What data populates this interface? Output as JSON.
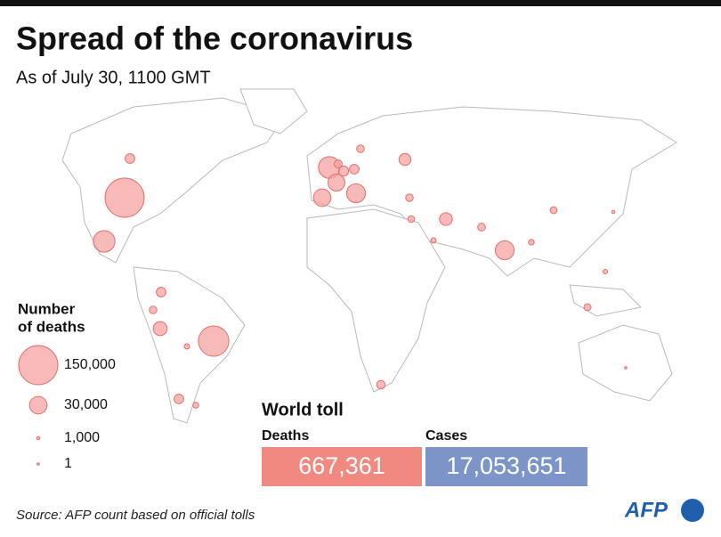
{
  "header": {
    "title": "Spread of the coronavirus",
    "subtitle": "As of July 30, 1100 GMT"
  },
  "legend": {
    "title_lines": [
      "Number",
      "of deaths"
    ],
    "sizes": [
      {
        "value": 150000,
        "label": "150,000"
      },
      {
        "value": 30000,
        "label": "30,000"
      },
      {
        "value": 1000,
        "label": "1,000"
      },
      1
    ]
  },
  "map": {
    "type": "bubble-map",
    "color": "#f4a3a0",
    "bubbles": [
      150000,
      90000,
      46000,
      46000,
      35000,
      30000,
      28000,
      35000,
      19000,
      16000,
      14000,
      9000,
      9000,
      7000,
      9000,
      9000,
      9800,
      5700,
      4500,
      5600,
      5600,
      3300,
      2800,
      5800,
      4900,
      4600,
      6100,
      3100,
      2800,
      2000,
      1000,
      190
    ]
  },
  "toll": {
    "title": "World toll",
    "deaths_label": "Deaths",
    "deaths": {
      "value": 667361,
      "label": "667,361"
    },
    "cases_label": "Cases",
    "cases": {
      "value": 17053651,
      "label": "17,053,651"
    }
  },
  "source": "Source: AFP count based on official tolls",
  "logo": "AFP"
}
